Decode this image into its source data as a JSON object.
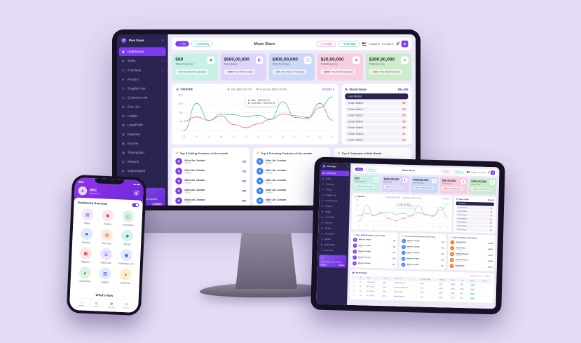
{
  "scene": {
    "background": "#e5dbf5",
    "accent": "#7c3aed"
  },
  "dashboard": {
    "sidebar": {
      "logo_label": "Pos Saas",
      "logo_chev": "›",
      "items": [
        {
          "label": "DashBoard",
          "glyph": "▦",
          "icon": "dashboard",
          "chev": "›",
          "active": true
        },
        {
          "label": "Sales",
          "glyph": "◉",
          "icon": "sales",
          "chev": "▾"
        },
        {
          "label": "Purchase",
          "glyph": "◰",
          "icon": "purchase",
          "chev": "▾"
        },
        {
          "label": "Product",
          "glyph": "■",
          "icon": "product",
          "chev": "›"
        },
        {
          "label": "Supplier List",
          "glyph": "◳",
          "icon": "supplier-list",
          "chev": "›"
        },
        {
          "label": "Customer List",
          "glyph": "◱",
          "icon": "customer-list",
          "chev": "›"
        },
        {
          "label": "Due List",
          "glyph": "▥",
          "icon": "due-list",
          "chev": "›"
        },
        {
          "label": "Ledger",
          "glyph": "▧",
          "icon": "ledger",
          "chev": "›"
        },
        {
          "label": "Loss/Profit",
          "glyph": "◪",
          "icon": "loss-profit",
          "chev": "›"
        },
        {
          "label": "Expense",
          "glyph": "▨",
          "icon": "expense",
          "chev": "›"
        },
        {
          "label": "Income",
          "glyph": "▩",
          "icon": "income",
          "chev": "›"
        },
        {
          "label": "Transaction",
          "glyph": "◨",
          "icon": "transaction",
          "chev": "›"
        },
        {
          "label": "Reports",
          "glyph": "▤",
          "icon": "reports",
          "chev": "›"
        },
        {
          "label": "Subscription",
          "glyph": "◧",
          "icon": "subscription",
          "chev": "›"
        },
        {
          "label": "User Role",
          "glyph": "◍",
          "icon": "user-role",
          "chev": "›"
        }
      ],
      "promo": {
        "title": "Your Package name is expired",
        "cta": "Explore it",
        "days": "2 Days"
      }
    },
    "header": {
      "title": "Mean Store",
      "pos": "+ Pos",
      "inventory": "+ Inventory",
      "product": "+ Product",
      "purchase": "+ Purchase",
      "language": "English ▾",
      "currency": "$ Dollar ▾"
    },
    "stat_cards": [
      {
        "name": "total-customer-card",
        "value": "500",
        "label": "Total Customer",
        "dir": "up",
        "delta": "50",
        "text": "This Month Customer",
        "bg": "#c9f0e6",
        "fg": "#0d9488",
        "delta_color": "#0d9488",
        "glyph": "◉",
        "icon": "customers"
      },
      {
        "name": "total-sales-card",
        "value": "$500,00,000",
        "label": "Total Sales",
        "dir": "up",
        "delta": "$50k",
        "text": "This Month Sales",
        "bg": "#ded4f9",
        "fg": "#7c3aed",
        "delta_color": "#7c3aed",
        "glyph": "◧",
        "icon": "sales-bag"
      },
      {
        "name": "total-purchase-card",
        "value": "$400,00,000",
        "label": "Total Purchase",
        "dir": "up",
        "delta": "$5k",
        "text": "This Month Purchase",
        "bg": "#ccd8f8",
        "fg": "#3b82f6",
        "delta_color": "#3b82f6",
        "glyph": "◰",
        "icon": "purchase-cart"
      },
      {
        "name": "total-expense-card",
        "value": "$20,00,000",
        "label": "Total Expense",
        "dir": "up",
        "delta": "$50k",
        "text": "This Month Expense",
        "bg": "#f8cfe0",
        "fg": "#e11d48",
        "delta_color": "#e11d48",
        "glyph": "◈",
        "icon": "expense-money"
      },
      {
        "name": "total-income-card",
        "value": "$300,00,000",
        "label": "Total Income",
        "dir": "down",
        "delta": "$50k",
        "text": "This Month Income",
        "bg": "#cdeccb",
        "fg": "#16a34a",
        "delta_color": "#ef4444",
        "glyph": "$",
        "icon": "income-money"
      }
    ],
    "statistics": {
      "title": "Statistic",
      "legend_sale": "Sale  ($82,100.00)",
      "legend_expenses": "Expenses  ($82,100.00)",
      "period": "January ▾",
      "tooltip_sale": "Sale : $50,000.00",
      "tooltip_expenses": "Expenses : $45,000.00"
    },
    "stock": {
      "title": "Stock Value",
      "total": "$54,405",
      "low_title": "Low Stocks",
      "rows": [
        {
          "item": "Smart Watch",
          "qty": "55"
        },
        {
          "item": "Smart Watch",
          "qty": "56"
        },
        {
          "item": "Smart Watch",
          "qty": "50"
        },
        {
          "item": "Smart Watch",
          "qty": "45"
        },
        {
          "item": "Smart Watch",
          "qty": "55"
        },
        {
          "item": "Smart Watch",
          "qty": "51"
        },
        {
          "item": "Smart Watch",
          "qty": "50"
        }
      ]
    },
    "top5": [
      {
        "id": "top-selling-panel",
        "title": "Top 5 Selling Products of the month",
        "color": "#7c3aed",
        "rows": [
          {
            "name": "Nike Air Jordan",
            "sub": "Shoes",
            "value": "150"
          },
          {
            "name": "Nike Air Jordan",
            "sub": "Shoes",
            "value": "150"
          },
          {
            "name": "Nike Air Jordan",
            "sub": "Shoes",
            "value": "150"
          },
          {
            "name": "Nike Air Jordan",
            "sub": "Shoes",
            "value": "150"
          },
          {
            "name": "Nike Air Jordan",
            "sub": "Shoes",
            "value": "150"
          }
        ]
      },
      {
        "id": "top-purchasing-panel",
        "title": "Top 5 Purching Products of the month",
        "color": "#3b82f6",
        "rows": [
          {
            "name": "Nike Air Jordan",
            "sub": "Shoes",
            "value": "150"
          },
          {
            "name": "Nike Air Jordan",
            "sub": "Shoes",
            "value": "150"
          },
          {
            "name": "Nike Air Jordan",
            "sub": "Shoes",
            "value": "150"
          },
          {
            "name": "Nike Air Jordan",
            "sub": "Shoes",
            "value": "150"
          },
          {
            "name": "Nike Air Jordan",
            "sub": "Shoes",
            "value": "150"
          }
        ]
      },
      {
        "id": "top-customer-panel",
        "title": "Top 5 Customer of this Month",
        "color": "#f97316",
        "rows": [
          {
            "name": "Jane Cooper",
            "sub": "Customer",
            "value": "$1000"
          },
          {
            "name": "Albert Flores",
            "sub": "Customer",
            "value": "$2000"
          },
          {
            "name": "Kathryn Murphy",
            "sub": "Customer",
            "value": "$1500"
          },
          {
            "name": "Darrell Steward",
            "sub": "Customer",
            "value": "$1000"
          },
          {
            "name": "Floyd Miles",
            "sub": "Customer",
            "value": "$2500"
          }
        ]
      }
    ],
    "recent_sales": {
      "title": "Recent Sales",
      "showing": "Showing 1 of 10",
      "view_all": "View All →",
      "columns": [
        "",
        "SL",
        "Date",
        "Invoice",
        "Party Name",
        "Payment Type",
        "Amount",
        "Paid",
        "Due",
        "Status",
        "Action"
      ],
      "rows": [
        {
          "sl": "01",
          "date": "01-10-2023",
          "invoice": "1020",
          "party": "Ronald Richards",
          "payment": "Bank",
          "amount": "$150",
          "paid": "$100",
          "due": "$50",
          "status": "Paid"
        },
        {
          "sl": "02",
          "date": "01-10-2023",
          "invoice": "1021",
          "party": "Cameron Williamson",
          "payment": "Bank",
          "amount": "$200",
          "paid": "$100",
          "due": "$100",
          "status": "Due"
        },
        {
          "sl": "03",
          "date": "01-10-2023",
          "invoice": "1022",
          "party": "Jacob Jones",
          "payment": "Cash",
          "amount": "$500",
          "paid": "$450",
          "due": "$50",
          "status": "Paid"
        },
        {
          "sl": "04",
          "date": "01-10-2023",
          "invoice": "1023",
          "party": "Esther Howard",
          "payment": "Cash",
          "amount": "$300",
          "paid": "$250",
          "due": "$50",
          "status": "Paid"
        }
      ]
    }
  },
  "phone": {
    "header": {
      "name": "ABC",
      "plan": "Saas Pos",
      "avatar_initial": "A"
    },
    "overview_title": "Dashboard Overview",
    "whats_new": "What's New",
    "grid": [
      {
        "label": "Sales",
        "glyph": "▤",
        "fg": "#9333ea",
        "bg": "#f1e8fd"
      },
      {
        "label": "Parties",
        "glyph": "◉",
        "fg": "#e11d48",
        "bg": "#fde5ec"
      },
      {
        "label": "Purchase",
        "glyph": "◰",
        "fg": "#16a34a",
        "bg": "#ddf3e1"
      },
      {
        "label": "Product",
        "glyph": "■",
        "fg": "#2563eb",
        "bg": "#dfe9fd"
      },
      {
        "label": "Due List",
        "glyph": "▥",
        "fg": "#ea580c",
        "bg": "#fdeadd"
      },
      {
        "label": "Stocks",
        "glyph": "◆",
        "fg": "#0d9488",
        "bg": "#d8f3ef"
      },
      {
        "label": "Reports",
        "glyph": "▦",
        "fg": "#dc2626",
        "bg": "#fde3e3"
      },
      {
        "label": "Sales List",
        "glyph": "☰",
        "fg": "#7c3aed",
        "bg": "#ece4fc"
      },
      {
        "label": "Purchase List",
        "glyph": "▣",
        "fg": "#2563eb",
        "bg": "#e0eafd"
      },
      {
        "label": "Loss/Profit",
        "glyph": "▲",
        "fg": "#16a34a",
        "bg": "#def3e2"
      },
      {
        "label": "Ledger",
        "glyph": "▧",
        "fg": "#2563eb",
        "bg": "#e0e9fd"
      },
      {
        "label": "Expense",
        "glyph": "●",
        "fg": "#d97706",
        "bg": "#fdeccf"
      }
    ],
    "nav": [
      {
        "label": "Home",
        "glyph": "⌂",
        "active": true
      },
      {
        "label": "Sales",
        "glyph": "▤",
        "active": false
      },
      {
        "label": "Reports",
        "glyph": "▦",
        "active": false
      },
      {
        "label": "Setting",
        "glyph": "⚙",
        "active": false
      }
    ]
  },
  "chart_data": {
    "type": "line",
    "title": "Statistic",
    "x": [
      "01",
      "03",
      "06",
      "09",
      "12",
      "15",
      "18",
      "21",
      "24",
      "27",
      "28",
      "30",
      "31"
    ],
    "y_ticks": [
      "500k",
      "100k",
      "50k",
      "20k",
      "0"
    ],
    "ymax": 560,
    "grid": true,
    "legend_position": "top",
    "series": [
      {
        "name": "Sale ($82,100.00)",
        "color": "#2fc4ac",
        "values": [
          5,
          430,
          160,
          260,
          250,
          215,
          240,
          175,
          455,
          205,
          185,
          360,
          530
        ]
      },
      {
        "name": "Expenses ($82,100.00)",
        "color": "#f16a84",
        "values": [
          150,
          215,
          160,
          230,
          95,
          45,
          105,
          175,
          260,
          235,
          205,
          430,
          165
        ]
      }
    ]
  }
}
